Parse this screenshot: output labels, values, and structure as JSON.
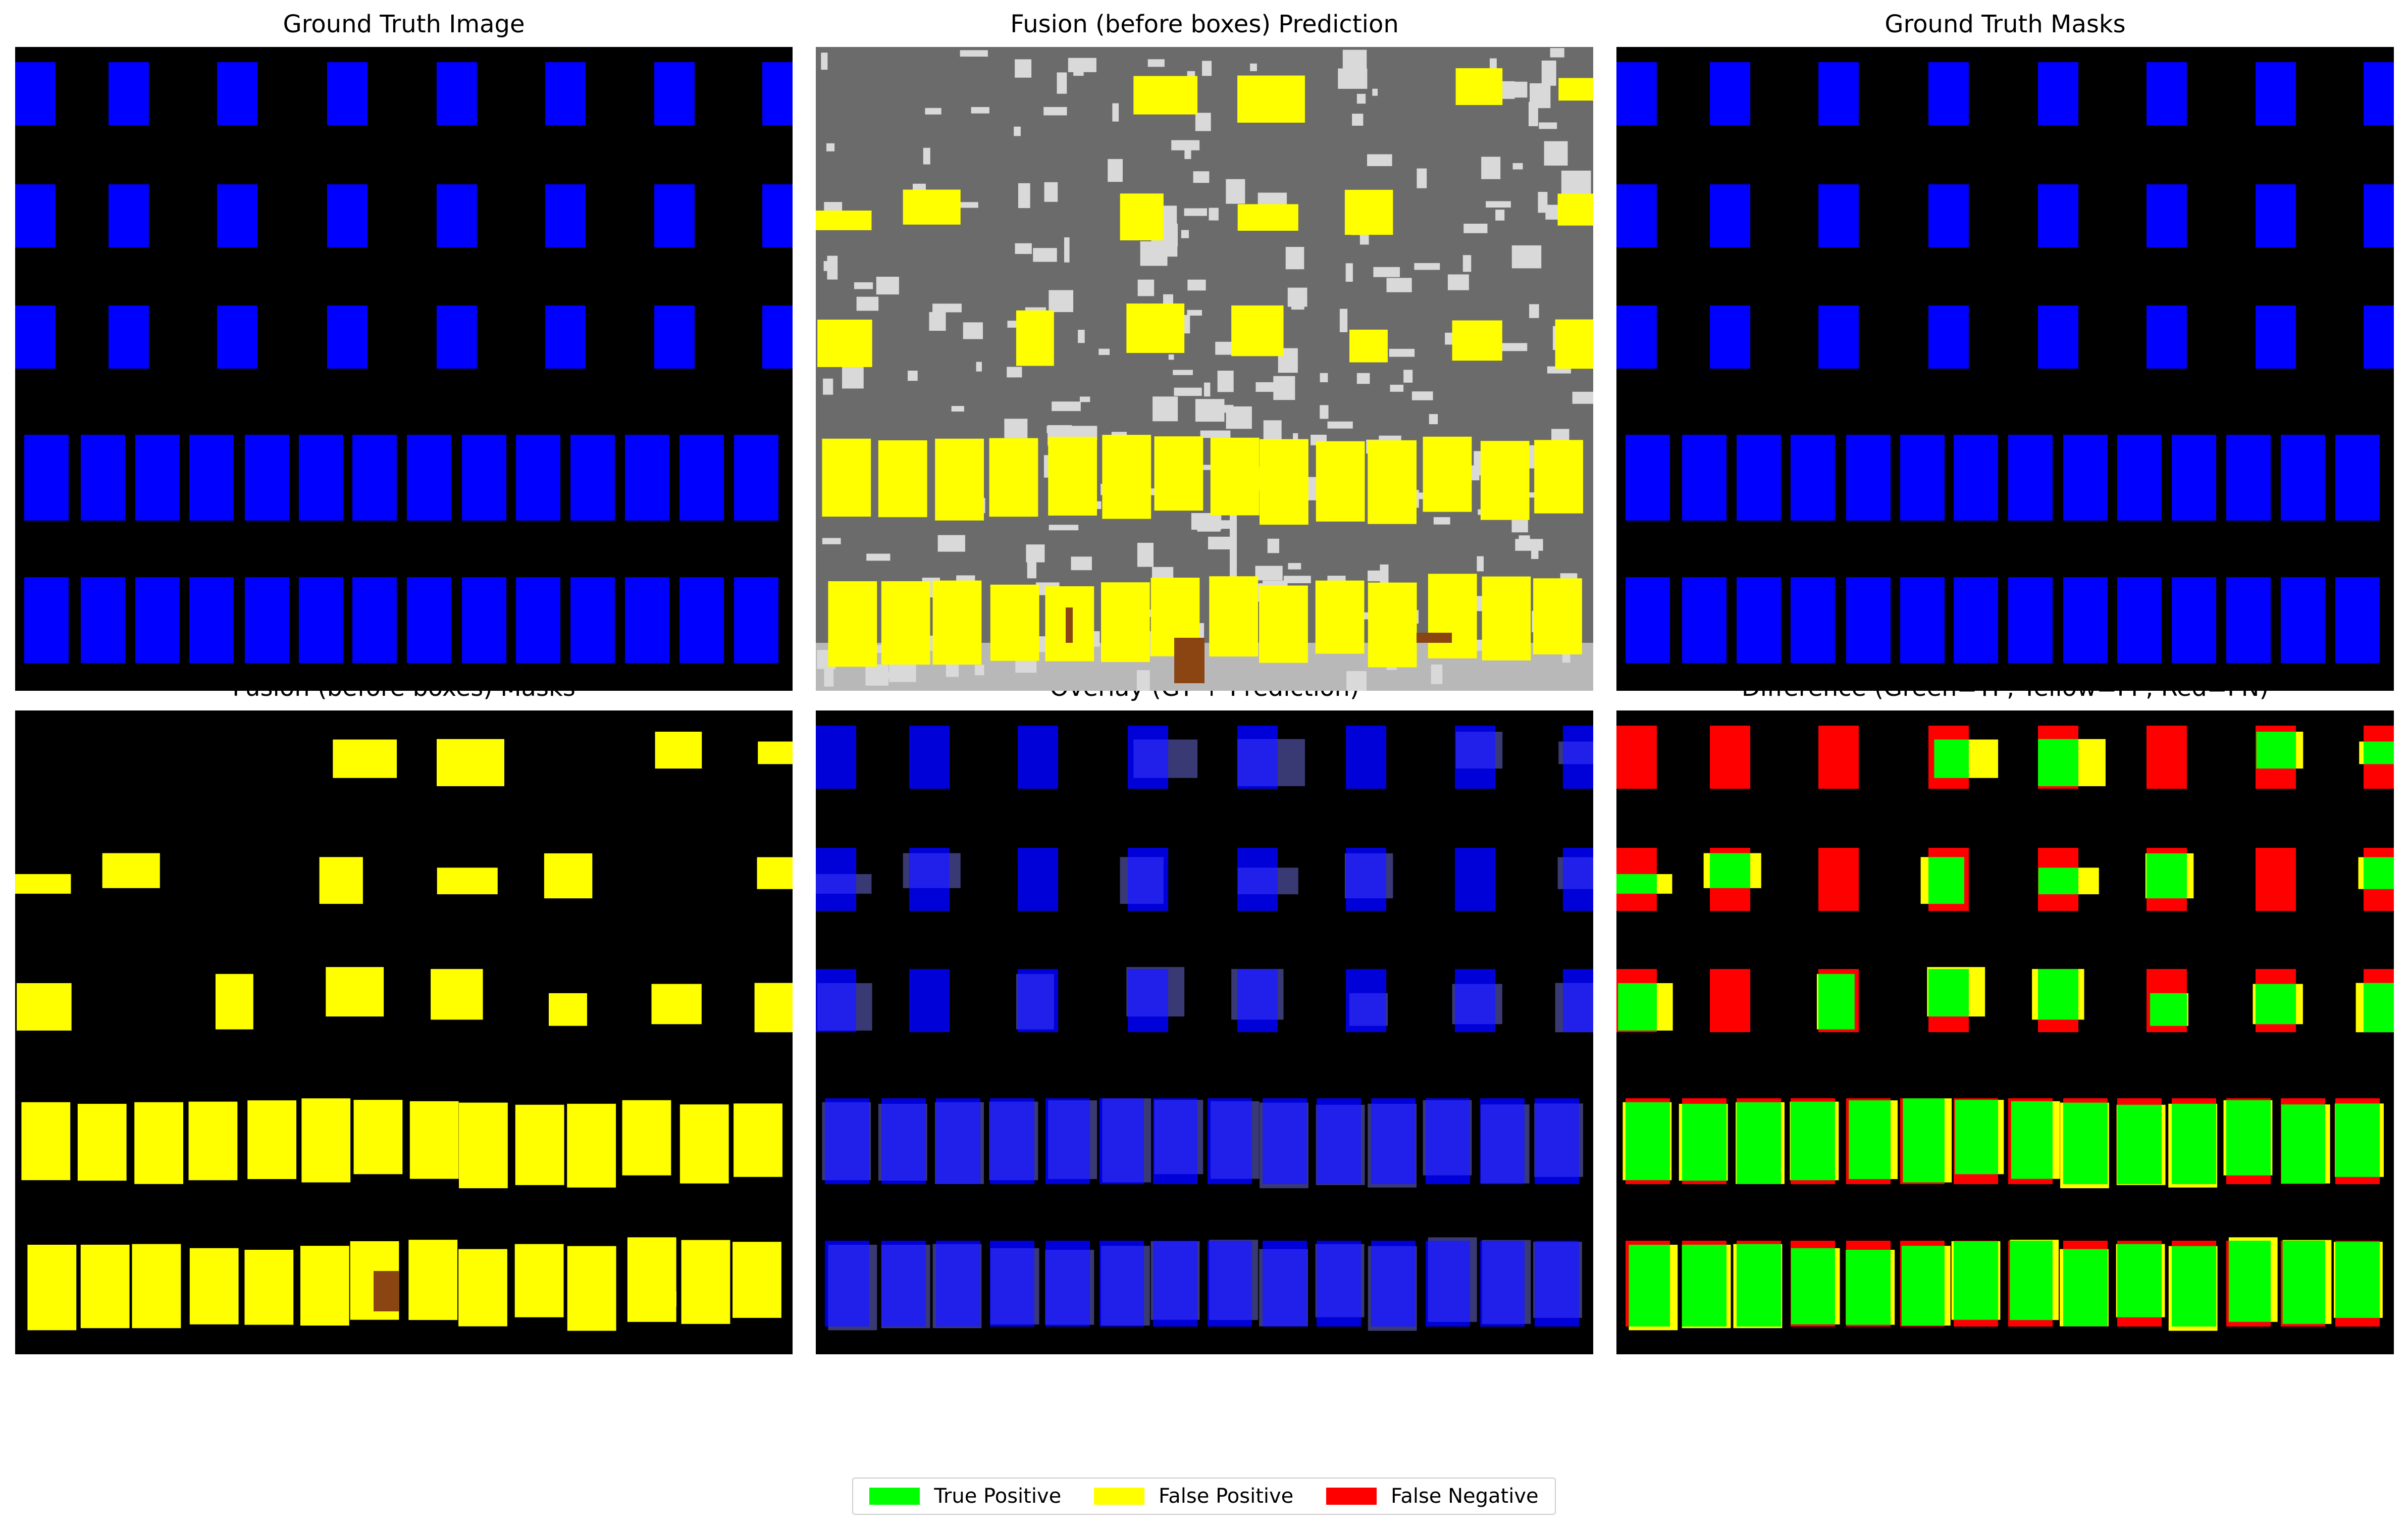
{
  "panels": [
    {
      "id": "gt-image",
      "title": "Ground Truth Image"
    },
    {
      "id": "fusion-prediction",
      "title": "Fusion (before boxes) Prediction"
    },
    {
      "id": "gt-masks",
      "title": "Ground Truth Masks"
    },
    {
      "id": "fusion-masks",
      "title": "Fusion (before boxes) Masks"
    },
    {
      "id": "overlay",
      "title": "Overlay (GT + Prediction)"
    },
    {
      "id": "difference",
      "title": "Difference (Green=TP, Yellow=FP, Red=FN)"
    }
  ],
  "legend": [
    {
      "label": "True Positive",
      "color": "#00ff00"
    },
    {
      "label": "False Positive",
      "color": "#ffff00"
    },
    {
      "label": "False Negative",
      "color": "#ff0000"
    }
  ],
  "colors": {
    "background": "#000000",
    "gt": "#0000ff",
    "prediction": "#ffff00",
    "prediction_background": "#6b6b6b",
    "prediction_noise": "#d9d9d9",
    "brown": "#8b4513",
    "tp": "#00ff00",
    "fp": "#ffff00",
    "fn": "#ff0000"
  }
}
